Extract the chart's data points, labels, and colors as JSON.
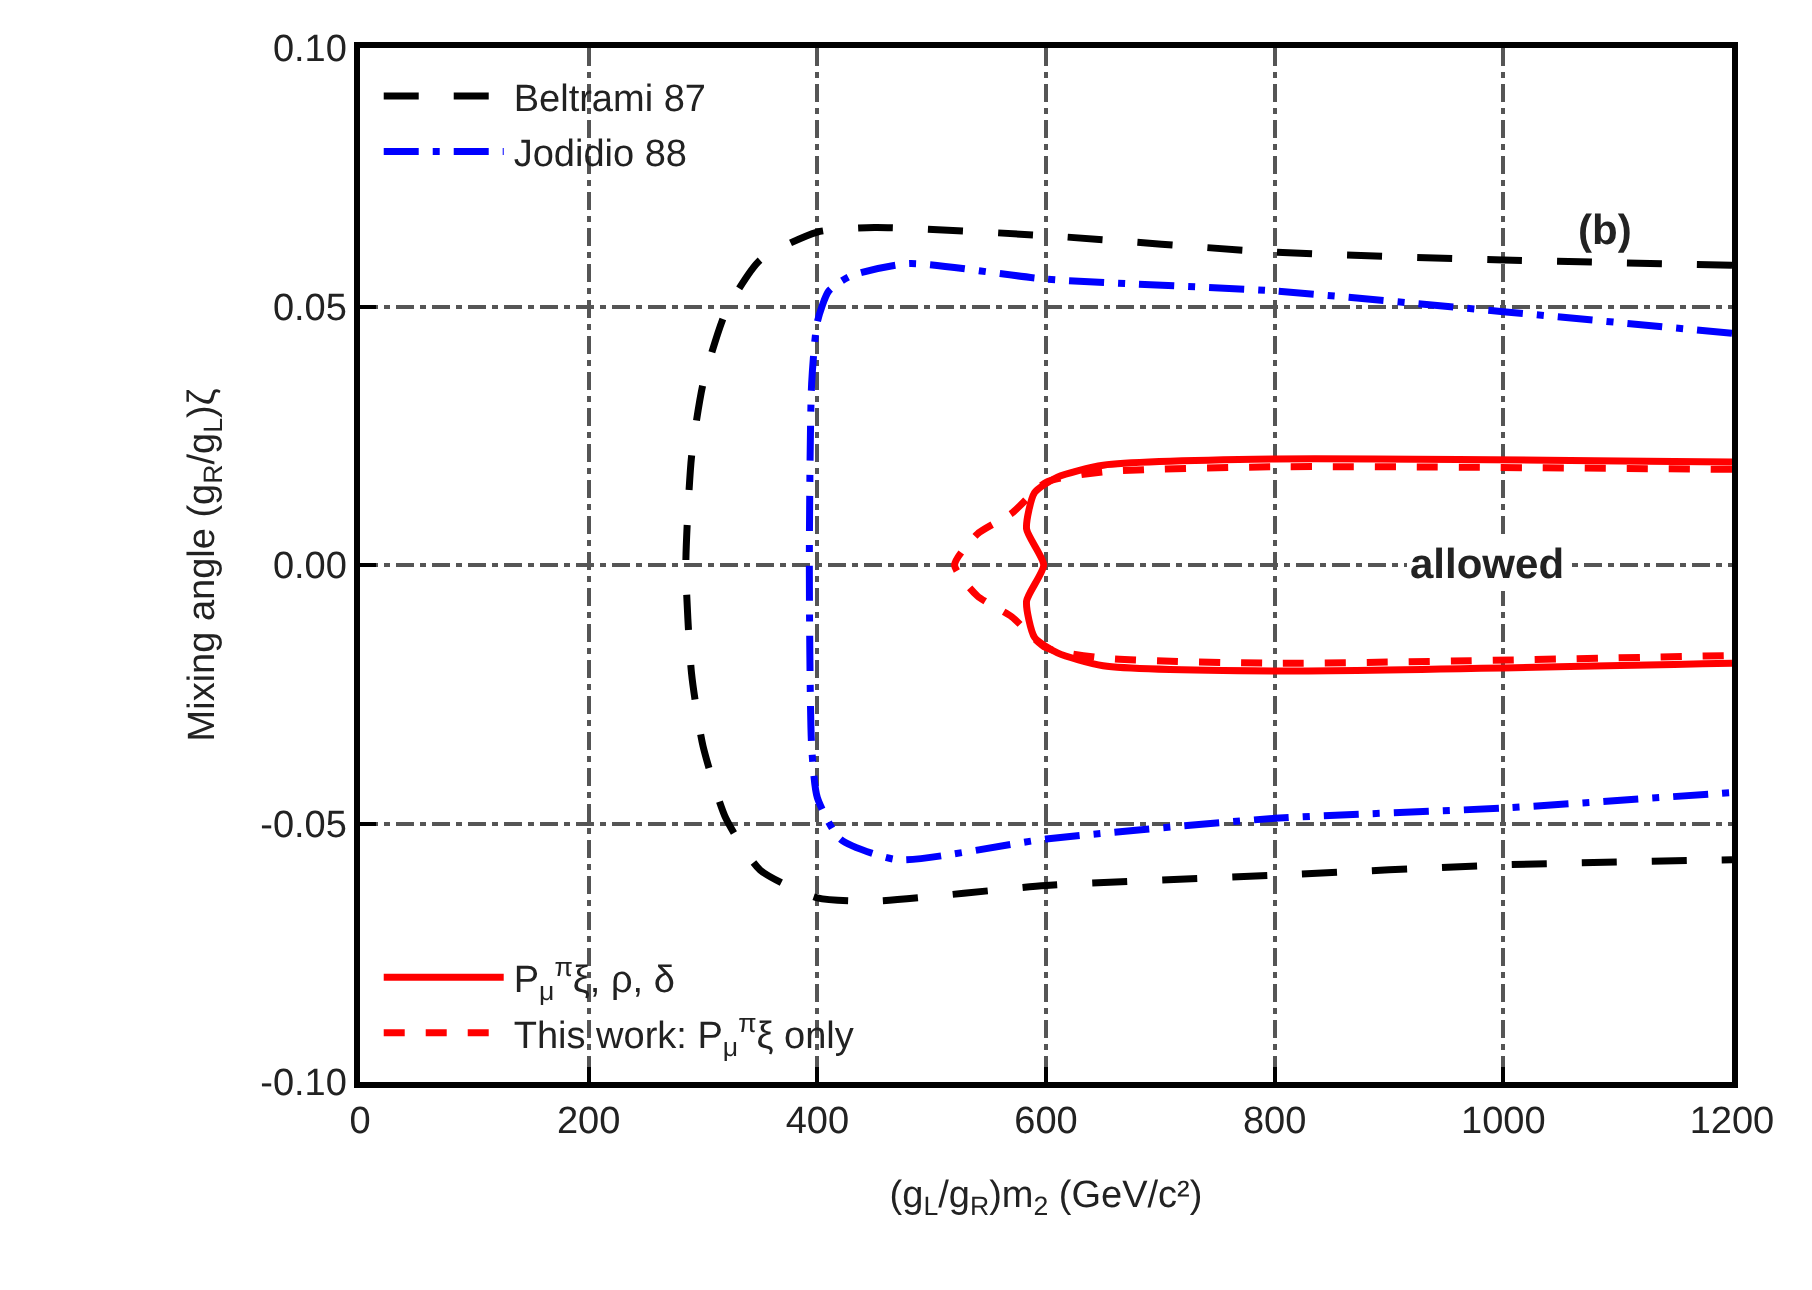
{
  "chart_data": {
    "type": "line",
    "xlabel": "(g$_{L}$/g$_{R}$)m$_{2}$ (GeV/c²)",
    "ylabel": "Mixing angle (g$_{R}$/g$_{L}$)ζ",
    "xlim": [
      0,
      1200
    ],
    "ylim": [
      -0.1,
      0.1
    ],
    "xticks": [
      0,
      200,
      400,
      600,
      800,
      1000,
      1200
    ],
    "yticks": [
      {
        "value": -0.1,
        "label": "-0.10"
      },
      {
        "value": -0.05,
        "label": "-0.05"
      },
      {
        "value": 0,
        "label": "0.00"
      },
      {
        "value": 0.05,
        "label": "0.05"
      },
      {
        "value": 0.1,
        "label": "0.10"
      }
    ],
    "grid": true,
    "legend": "left",
    "series": [
      {
        "name": "Beltrami 87",
        "color": "#000000",
        "line_style": "dashed",
        "x": [
          1200,
          1000,
          800,
          600,
          450,
          400,
          350,
          320,
          300,
          290,
          285,
          290,
          300,
          320,
          350,
          400,
          450,
          600,
          800,
          1000,
          1200
        ],
        "values": [
          0.058,
          0.059,
          0.0605,
          0.0637,
          0.0653,
          0.0644,
          0.059,
          0.049,
          0.035,
          0.021,
          0.0,
          -0.021,
          -0.035,
          -0.049,
          -0.059,
          -0.0644,
          -0.065,
          -0.062,
          -0.06,
          -0.058,
          -0.057
        ]
      },
      {
        "name": "Jodidio 88",
        "color": "#0000ff",
        "line_style": "dashdot",
        "x": [
          1200,
          1000,
          800,
          600,
          480,
          430,
          410,
          400,
          395,
          393,
          395,
          400,
          420,
          470,
          600,
          800,
          1000,
          1200
        ],
        "values": [
          0.0448,
          0.049,
          0.053,
          0.0553,
          0.0583,
          0.056,
          0.053,
          0.047,
          0.035,
          0.0,
          -0.035,
          -0.045,
          -0.053,
          -0.057,
          -0.053,
          -0.049,
          -0.047,
          -0.044
        ]
      },
      {
        "name": "P$_{μ}$$^{π}$ξ, ρ, δ",
        "color": "#ff0000",
        "line_style": "solid",
        "x": [
          1200,
          800,
          650,
          610,
          590,
          583,
          598,
          583,
          590,
          610,
          650,
          800,
          1200
        ],
        "values": [
          0.0199,
          0.0205,
          0.0193,
          0.017,
          0.014,
          0.007,
          0.0,
          -0.007,
          -0.014,
          -0.017,
          -0.0195,
          -0.0205,
          -0.019
        ]
      },
      {
        "name": "This work: P$_{μ}$$^{π}$ξ only",
        "color": "#ff0000",
        "line_style": "dotted",
        "x": [
          1200,
          800,
          650,
          600,
          570,
          540,
          520,
          540,
          570,
          600,
          650,
          800,
          1200
        ],
        "values": [
          0.0185,
          0.019,
          0.018,
          0.016,
          0.01,
          0.006,
          0.0,
          -0.006,
          -0.01,
          -0.016,
          -0.018,
          -0.019,
          -0.0175
        ]
      }
    ],
    "annotations": [
      "allowed",
      "(b)"
    ]
  }
}
